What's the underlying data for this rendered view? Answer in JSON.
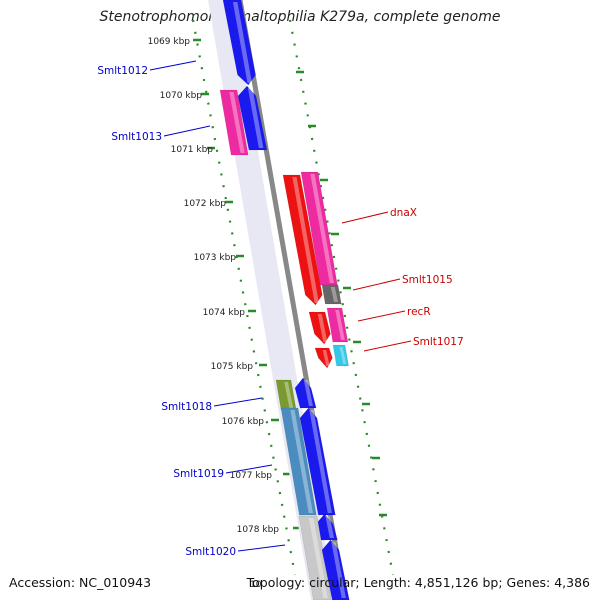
{
  "title": "Stenotrophomonas maltophilia K279a, complete genome",
  "footer": {
    "accession": "Accession: NC_010943",
    "topology": "Topology: circular; Length: 4,851,126 bp; Genes: 4,386"
  },
  "ruler": {
    "ticks": [
      "1069 kbp",
      "1070 kbp",
      "1071 kbp",
      "1072 kbp",
      "1073 kbp",
      "1074 kbp",
      "1075 kbp",
      "1076 kbp",
      "1077 kbp",
      "1078 kbp"
    ],
    "partial_label": "10"
  },
  "genes_left": [
    {
      "name": "Smlt1012",
      "color": "#0000cc"
    },
    {
      "name": "Smlt1013",
      "color": "#0000cc"
    },
    {
      "name": "Smlt1018",
      "color": "#0000cc"
    },
    {
      "name": "Smlt1019",
      "color": "#0000cc"
    },
    {
      "name": "Smlt1020",
      "color": "#0000cc"
    }
  ],
  "genes_right": [
    {
      "name": "dnaX",
      "color": "#cc0000"
    },
    {
      "name": "Smlt1015",
      "color": "#cc0000"
    },
    {
      "name": "recR",
      "color": "#cc0000"
    },
    {
      "name": "Smlt1017",
      "color": "#cc0000"
    }
  ],
  "colors": {
    "backbone": "#888888",
    "tick": "#2a8a2a",
    "forward": "#1a1aee",
    "reverse": "#ee1111",
    "magenta": "#ee2aa0",
    "olive": "#7a9a30",
    "steel": "#4a8cc0",
    "gray": "#666666",
    "light": "#c8c8c8",
    "cyan": "#33c8e8"
  }
}
